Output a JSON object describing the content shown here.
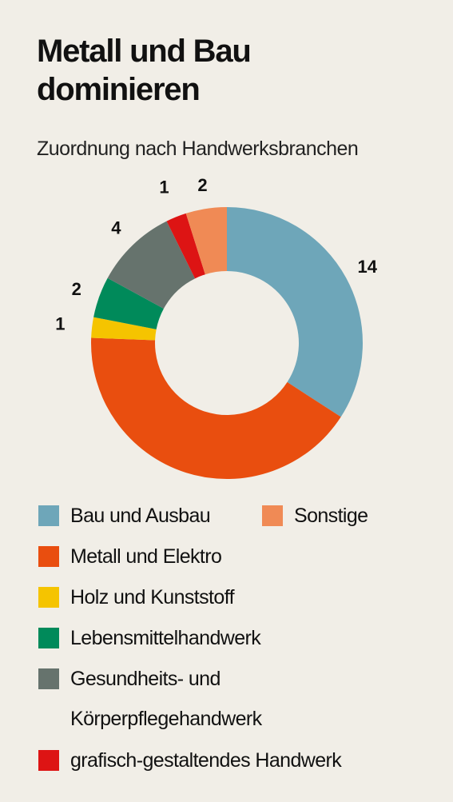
{
  "title": "Metall und Bau dominieren",
  "subtitle": "Zuordnung nach Handwerksbranchen",
  "chart_data": {
    "type": "pie",
    "donut": true,
    "title": "Metall und Bau dominieren",
    "subtitle": "Zuordnung nach Handwerksbranchen",
    "legend_position": "bottom",
    "slices": [
      {
        "label": "Bau und Ausbau",
        "value": 14,
        "color": "#6ea6b9"
      },
      {
        "label": "Metall und Elektro",
        "value": 17,
        "color": "#e94e0f"
      },
      {
        "label": "Holz und Kunststoff",
        "value": 1,
        "color": "#f5c400"
      },
      {
        "label": "Lebensmittelhandwerk",
        "value": 2,
        "color": "#008a5a"
      },
      {
        "label": "Gesundheits- und\nKörperpflegehandwerk",
        "value": 4,
        "color": "#66736d"
      },
      {
        "label": "grafisch-gestaltendes Handwerk",
        "value": 1,
        "color": "#dd1414"
      },
      {
        "label": "Sonstige",
        "value": 2,
        "color": "#f08a55"
      }
    ]
  }
}
